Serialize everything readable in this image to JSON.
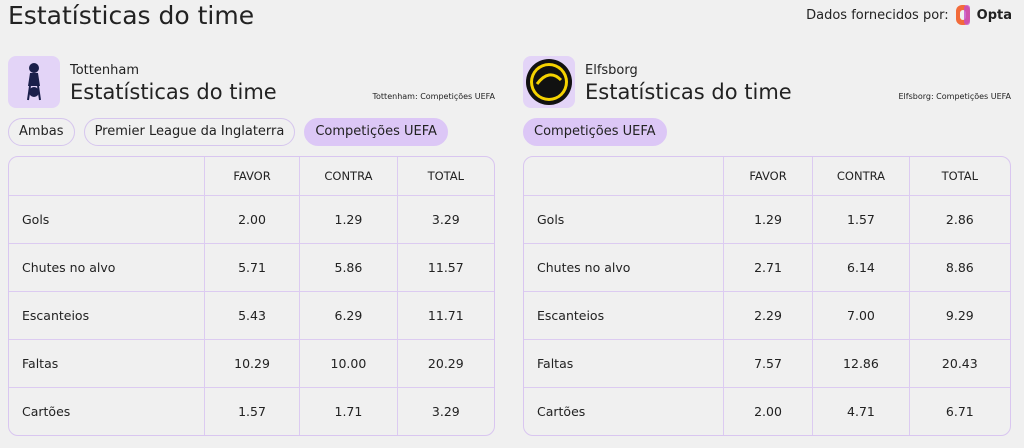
{
  "header": {
    "title": "Estatísticas do time",
    "provider_label": "Dados fornecidos por:",
    "provider": "Opta"
  },
  "panels": [
    {
      "team": "Tottenham",
      "title": "Estatísticas do time",
      "context": "Tottenham: Competições UEFA",
      "tabs": [
        "Ambas",
        "Premier League da Inglaterra",
        "Competições UEFA"
      ],
      "active_tab": 2,
      "columns": [
        "FAVOR",
        "CONTRA",
        "TOTAL"
      ],
      "rows": [
        [
          "Gols",
          "2.00",
          "1.29",
          "3.29"
        ],
        [
          "Chutes no alvo",
          "5.71",
          "5.86",
          "11.57"
        ],
        [
          "Escanteios",
          "5.43",
          "6.29",
          "11.71"
        ],
        [
          "Faltas",
          "10.29",
          "10.00",
          "20.29"
        ],
        [
          "Cartões",
          "1.57",
          "1.71",
          "3.29"
        ]
      ]
    },
    {
      "team": "Elfsborg",
      "title": "Estatísticas do time",
      "context": "Elfsborg: Competições UEFA",
      "tabs": [
        "Competições UEFA"
      ],
      "active_tab": 0,
      "columns": [
        "FAVOR",
        "CONTRA",
        "TOTAL"
      ],
      "rows": [
        [
          "Gols",
          "1.29",
          "1.57",
          "2.86"
        ],
        [
          "Chutes no alvo",
          "2.71",
          "6.14",
          "8.86"
        ],
        [
          "Escanteios",
          "2.29",
          "7.00",
          "9.29"
        ],
        [
          "Faltas",
          "7.57",
          "12.86",
          "20.43"
        ],
        [
          "Cartões",
          "2.00",
          "4.71",
          "6.71"
        ]
      ]
    }
  ]
}
